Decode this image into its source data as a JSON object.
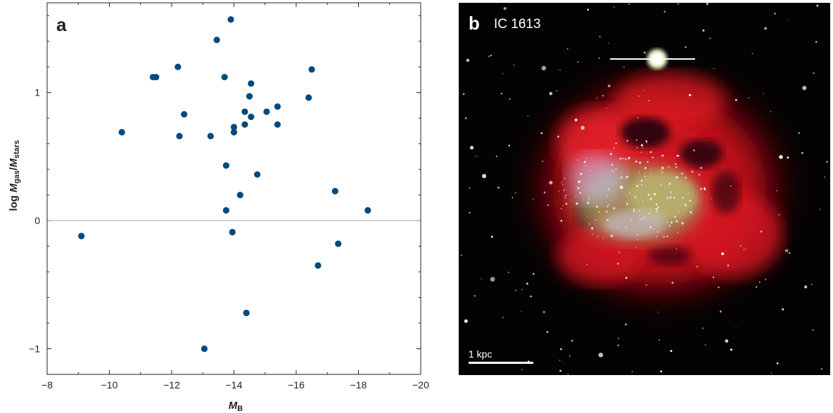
{
  "panel_a": {
    "letter": "a"
  },
  "panel_b": {
    "letter": "b",
    "name": "IC 1613",
    "scale_label": "1 kpc",
    "colors": {
      "gas": "#e0101a",
      "stars_blue": "#c8d4ff",
      "stars_green": "#b9c77a",
      "background": "#050203"
    }
  },
  "chart_data": {
    "type": "scatter",
    "xlabel_main": "M",
    "xlabel_sub": "B",
    "ylabel_prefix": "log ",
    "ylabel_num": "M",
    "ylabel_num_sub": "gas",
    "ylabel_slash": "/",
    "ylabel_den": "M",
    "ylabel_den_sub": "stars",
    "xlim": [
      -8,
      -20
    ],
    "ylim": [
      -1.2,
      1.7
    ],
    "x_axis_reversed": true,
    "x_ticks": [
      -8,
      -10,
      -12,
      -14,
      -16,
      -18,
      -20
    ],
    "x_tick_labels": [
      "−8",
      "−10",
      "−12",
      "−14",
      "−16",
      "−18",
      "−20"
    ],
    "y_ticks": [
      -1,
      0,
      1
    ],
    "y_tick_labels": [
      "−1",
      "0",
      "1"
    ],
    "reference_line_y": 0,
    "marker_color": "#004a7c",
    "points": [
      {
        "x": -9.1,
        "y": -0.12
      },
      {
        "x": -10.4,
        "y": 0.69
      },
      {
        "x": -11.4,
        "y": 1.12
      },
      {
        "x": -11.5,
        "y": 1.12
      },
      {
        "x": -12.2,
        "y": 1.2
      },
      {
        "x": -12.25,
        "y": 0.66
      },
      {
        "x": -12.4,
        "y": 0.83
      },
      {
        "x": -13.05,
        "y": -1.0
      },
      {
        "x": -13.25,
        "y": 0.66
      },
      {
        "x": -13.45,
        "y": 1.41
      },
      {
        "x": -13.7,
        "y": 1.12
      },
      {
        "x": -13.75,
        "y": 0.43
      },
      {
        "x": -13.75,
        "y": 0.08
      },
      {
        "x": -13.9,
        "y": 1.57
      },
      {
        "x": -13.95,
        "y": -0.09
      },
      {
        "x": -14.0,
        "y": 0.73
      },
      {
        "x": -14.0,
        "y": 0.69
      },
      {
        "x": -14.2,
        "y": 0.2
      },
      {
        "x": -14.35,
        "y": 0.85
      },
      {
        "x": -14.35,
        "y": 0.75
      },
      {
        "x": -14.4,
        "y": -0.72
      },
      {
        "x": -14.5,
        "y": 0.97
      },
      {
        "x": -14.55,
        "y": 1.07
      },
      {
        "x": -14.55,
        "y": 0.81
      },
      {
        "x": -14.75,
        "y": 0.36
      },
      {
        "x": -15.05,
        "y": 0.85
      },
      {
        "x": -15.4,
        "y": 0.89
      },
      {
        "x": -15.4,
        "y": 0.75
      },
      {
        "x": -16.4,
        "y": 0.96
      },
      {
        "x": -16.5,
        "y": 1.18
      },
      {
        "x": -16.7,
        "y": -0.35
      },
      {
        "x": -17.25,
        "y": 0.23
      },
      {
        "x": -17.35,
        "y": -0.18
      },
      {
        "x": -18.3,
        "y": 0.08
      }
    ]
  }
}
